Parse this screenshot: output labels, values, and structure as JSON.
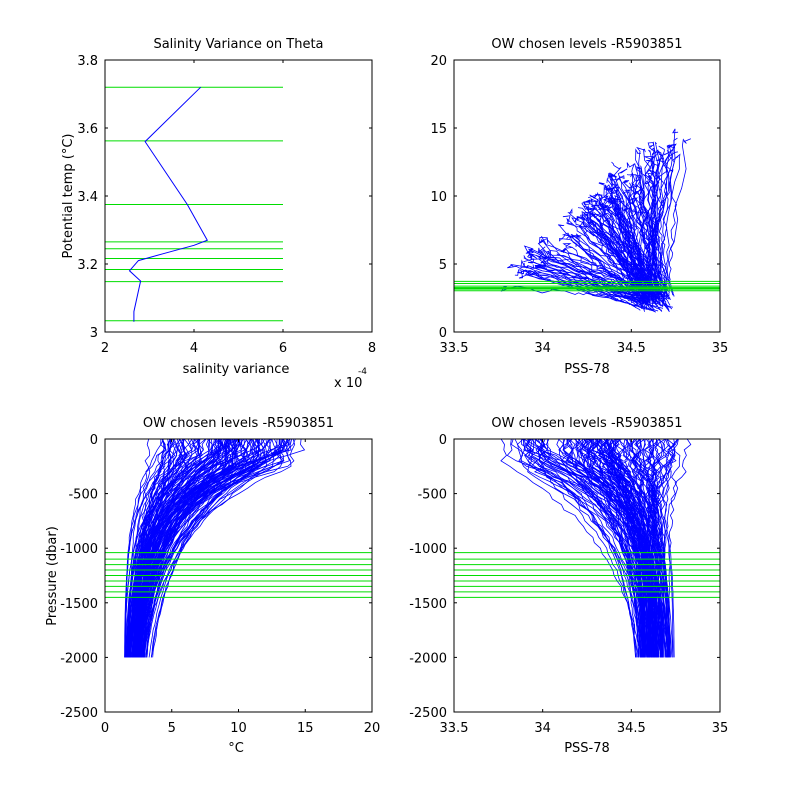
{
  "colors": {
    "profile": "#0000ff",
    "levels": "#00dd00",
    "axes": "#000000",
    "background": "#ffffff"
  },
  "chart_data": [
    {
      "id": "p1",
      "type": "line",
      "title": "Salinity Variance on Theta",
      "xlabel": "salinity variance",
      "ylabel": "Potential temp (°C)",
      "exponent_label": "x 10",
      "exponent_power": "-4",
      "xlim": [
        2,
        8
      ],
      "ylim": [
        3,
        3.8
      ],
      "xticks": [
        2,
        4,
        6,
        8
      ],
      "xtick_labels": [
        "2",
        "4",
        "6",
        "8"
      ],
      "yticks": [
        3,
        3.2,
        3.4,
        3.6,
        3.8
      ],
      "ytick_labels": [
        "3",
        "3.2",
        "3.4",
        "3.6",
        "3.8"
      ],
      "series": [
        {
          "x": [
            2.65,
            2.65,
            2.8,
            2.55,
            2.75,
            3.3,
            4.0,
            4.3,
            3.85,
            2.9,
            4.15
          ],
          "y": [
            3.03,
            3.06,
            3.15,
            3.18,
            3.21,
            3.23,
            3.255,
            3.27,
            3.375,
            3.56,
            3.72
          ]
        }
      ],
      "hlines": {
        "y": [
          3.033,
          3.148,
          3.184,
          3.216,
          3.245,
          3.265,
          3.375,
          3.562,
          3.72
        ],
        "x_range": [
          2,
          6
        ]
      },
      "grid": false
    },
    {
      "id": "p2",
      "type": "line",
      "title": "OW chosen levels -R5903851",
      "xlabel": "PSS-78",
      "ylabel": "",
      "xlim": [
        33.5,
        35
      ],
      "ylim": [
        0,
        20
      ],
      "xticks": [
        33.5,
        34,
        34.5,
        35
      ],
      "xtick_labels": [
        "33.5",
        "34",
        "34.5",
        "35"
      ],
      "yticks": [
        0,
        5,
        10,
        15,
        20
      ],
      "ytick_labels": [
        "0",
        "5",
        "10",
        "15",
        "20"
      ],
      "profile_count": 150,
      "hlines": {
        "y": [
          3.033,
          3.148,
          3.184,
          3.216,
          3.245,
          3.265,
          3.375,
          3.562,
          3.72
        ],
        "x_range": [
          33.5,
          35
        ]
      },
      "grid": false
    },
    {
      "id": "p3",
      "type": "line",
      "title": "OW chosen levels -R5903851",
      "xlabel": "°C",
      "ylabel": "Pressure (dbar)",
      "xlim": [
        0,
        20
      ],
      "ylim": [
        -2500,
        0
      ],
      "xticks": [
        0,
        5,
        10,
        15,
        20
      ],
      "xtick_labels": [
        "0",
        "5",
        "10",
        "15",
        "20"
      ],
      "yticks": [
        -2500,
        -2000,
        -1500,
        -1000,
        -500,
        0
      ],
      "ytick_labels": [
        "-2500",
        "-2000",
        "-1500",
        "-1000",
        "-500",
        "0"
      ],
      "profile_count": 150,
      "hlines": {
        "y": [
          -1040,
          -1100,
          -1150,
          -1200,
          -1250,
          -1300,
          -1350,
          -1400,
          -1450
        ],
        "x_range": [
          0,
          20
        ]
      },
      "grid": false
    },
    {
      "id": "p4",
      "type": "line",
      "title": "OW chosen levels -R5903851",
      "xlabel": "PSS-78",
      "ylabel": "",
      "xlim": [
        33.5,
        35
      ],
      "ylim": [
        -2500,
        0
      ],
      "xticks": [
        33.5,
        34,
        34.5,
        35
      ],
      "xtick_labels": [
        "33.5",
        "34",
        "34.5",
        "35"
      ],
      "yticks": [
        -2500,
        -2000,
        -1500,
        -1000,
        -500,
        0
      ],
      "ytick_labels": [
        "-2500",
        "-2000",
        "-1500",
        "-1000",
        "-500",
        "0"
      ],
      "profile_count": 150,
      "hlines": {
        "y": [
          -1040,
          -1100,
          -1150,
          -1200,
          -1250,
          -1300,
          -1350,
          -1400,
          -1450
        ],
        "x_range": [
          33.5,
          35
        ]
      },
      "grid": false
    }
  ]
}
